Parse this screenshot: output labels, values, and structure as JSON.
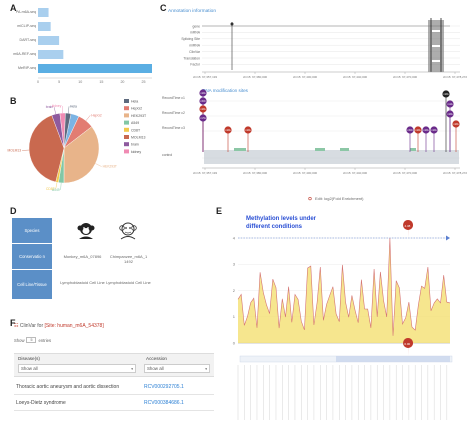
{
  "panels": {
    "a": "A",
    "b": "B",
    "c": "C",
    "d": "D",
    "e": "E",
    "f": "F"
  },
  "panel_a": {
    "categories": [
      "PA-m6A-seq",
      "miCLIP-seq",
      "DART-seq",
      "m6A-REF-seq",
      "MeRIP-seq"
    ],
    "values": [
      2.5,
      3.0,
      5.0,
      6.0,
      27
    ],
    "xticks": [
      "0",
      "5",
      "10",
      "15",
      "20",
      "25"
    ],
    "bar_color": "#a9cfee",
    "highlight_color": "#5aaee3"
  },
  "panel_b": {
    "slices": [
      {
        "label": "lung",
        "value": 3,
        "color": "#7bb3e3"
      },
      {
        "label": "HepG2",
        "value": 6,
        "color": "#e27c72"
      },
      {
        "label": "HEK293T",
        "value": 28,
        "color": "#e8b48a"
      },
      {
        "label": "A549",
        "value": 2,
        "color": "#82c7a5"
      },
      {
        "label": "CD8T",
        "value": 1,
        "color": "#f2c94c"
      },
      {
        "label": "MOLM13",
        "value": 32,
        "color": "#c9694f"
      },
      {
        "label": "brain",
        "value": 3,
        "color": "#8e5a9e"
      },
      {
        "label": "kidney",
        "value": 2,
        "color": "#f08bb3"
      },
      {
        "label": "Hela",
        "value": 2,
        "color": "#5e6a7e"
      }
    ],
    "callouts": [
      "A549",
      "CD8T",
      "HEK293T",
      "HepG2",
      "Hela",
      "MOLM13",
      "brain",
      "kidney"
    ],
    "legend": [
      "Hela",
      "HepG2",
      "HEK293T",
      "A549",
      "CD8T",
      "MOLM13",
      "brain",
      "kidney"
    ]
  },
  "panel_c": {
    "annotation_title": "Annotation information",
    "tracks": [
      "gene",
      "mRNA",
      "Splicing Site",
      "miRNA",
      "ClinVar",
      "Translation",
      "Factor"
    ],
    "axis_labels_top": [
      "chr15: 67,357,193",
      "chr15: 67,380,000",
      "chr15: 67,400,000",
      "chr15: 67,440,000",
      "chr15: 67,470,000",
      "chr15: 67,478,272"
    ],
    "sites_title": "RNA modification sites",
    "record_labels": [
      "RecordTime c1",
      "RecordTime c2",
      "RecordTime c3",
      "control"
    ],
    "axis_labels_bottom": [
      "chr15: 67,357,193",
      "chr15: 67,380,000",
      "chr15: 67,400,000",
      "chr15: 67,440,000",
      "chr15: 67,470,000",
      "chr15: 67,478,272"
    ],
    "lollipop_labels": [
      "m6A",
      "m5C",
      "m6A",
      "m7G",
      "m6A",
      "m6A",
      "m5C",
      "m6A",
      "m6A",
      "m6A",
      "m6A",
      "m1A",
      "m6A",
      "m6A"
    ],
    "legend": "Edit: log2(Fold Enrichment)"
  },
  "panel_d": {
    "labels": [
      "Species",
      "Conservatio n",
      "Cell Line/Tissue"
    ],
    "species": [
      "Monkey",
      "Chimpanzee"
    ],
    "conservation": [
      "Monkey_m6A_07896",
      "Chimpanzee_m6A_1 1492"
    ],
    "cell_lines": [
      "Lymphoblastoid Cell Line",
      "Lymphoblastoid Cell Line"
    ]
  },
  "panel_e": {
    "title_line1": "Methylation levels under",
    "title_line2": "different conditions",
    "yticks": [
      "0",
      "1",
      "2",
      "3",
      "4"
    ],
    "max_label": "4.38",
    "min_label": "0.00",
    "fill_color": "#f4e27a",
    "line_color": "#d47373"
  },
  "panel_f": {
    "title_prefix": "ClinVar for ",
    "title_site": "[Site: human_m6A_54378]",
    "show_label": "Show",
    "entries_value": "5",
    "entries_label": "entries",
    "col_disease": "Disease(s)",
    "col_accession": "Accession",
    "filter_all": "Show all",
    "rows": [
      {
        "disease": "Thoracic aortic aneurysm and aortic dissection",
        "accession": "RCV000292705.1"
      },
      {
        "disease": "Loeys-Dietz syndrome",
        "accession": "RCV000384686.1"
      }
    ]
  }
}
